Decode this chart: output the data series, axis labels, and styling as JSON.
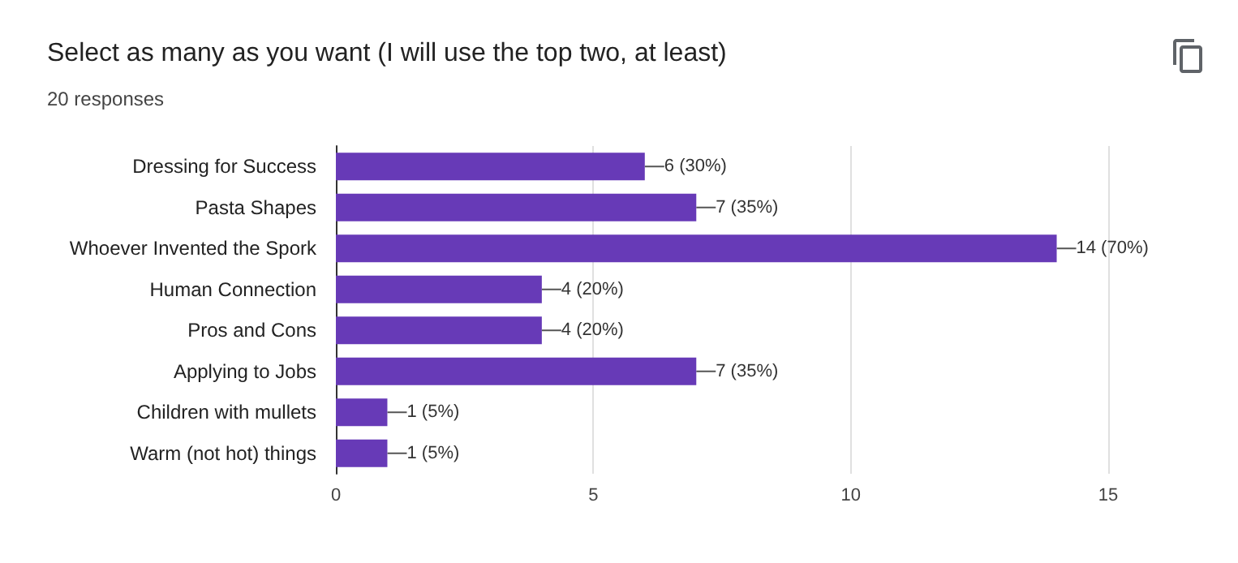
{
  "chart_data": {
    "type": "bar",
    "orientation": "horizontal",
    "title": "Select as many as you want (I will use the top two, at least)",
    "subtitle": "20 responses",
    "categories": [
      "Dressing for Success",
      "Pasta Shapes",
      "Whoever Invented the Spork",
      "Human Connection",
      "Pros and Cons",
      "Applying to Jobs",
      "Children with mullets",
      "Warm (not hot) things"
    ],
    "values": [
      6,
      7,
      14,
      4,
      4,
      7,
      1,
      1
    ],
    "value_labels": [
      "6 (30%)",
      "7 (35%)",
      "14 (70%)",
      "4 (20%)",
      "4 (20%)",
      "7 (35%)",
      "1 (5%)",
      "1 (5%)"
    ],
    "color": "#673ab7",
    "xlim": [
      0,
      15
    ],
    "xticks": [
      0,
      5,
      10,
      15
    ],
    "grid": "x"
  }
}
